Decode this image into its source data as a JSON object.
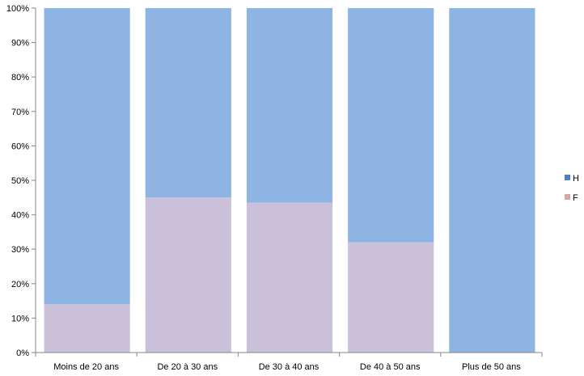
{
  "chart_data": {
    "type": "bar",
    "stacked": true,
    "percent": true,
    "categories": [
      "Moins de 20 ans",
      "De 20 à 30 ans",
      "De 30 à 40 ans",
      "De 40 à 50 ans",
      "Plus de 50 ans"
    ],
    "series": [
      {
        "name": "F",
        "color": "#cbc0da",
        "values": [
          14,
          45,
          43.5,
          32,
          0
        ]
      },
      {
        "name": "H",
        "color": "#8eb4e3",
        "values": [
          86,
          55,
          56.5,
          68,
          100
        ]
      }
    ],
    "ylim": [
      0,
      100
    ],
    "yticks": [
      "0%",
      "10%",
      "20%",
      "30%",
      "40%",
      "50%",
      "60%",
      "70%",
      "80%",
      "90%",
      "100%"
    ],
    "grid": false,
    "legend": {
      "position": "right",
      "items": [
        {
          "name": "H",
          "color": "#4f81bd"
        },
        {
          "name": "F",
          "color": "#d4a6a6"
        }
      ]
    }
  }
}
